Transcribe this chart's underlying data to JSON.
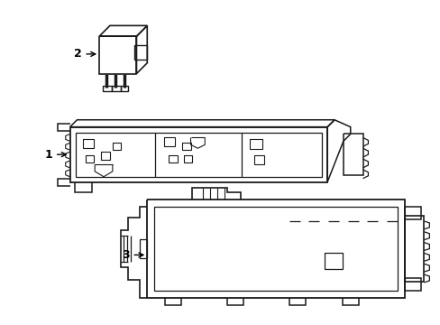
{
  "bg_color": "#ffffff",
  "line_color": "#1a1a1a",
  "lw": 1.0,
  "figsize": [
    4.89,
    3.6
  ],
  "dpi": 100
}
